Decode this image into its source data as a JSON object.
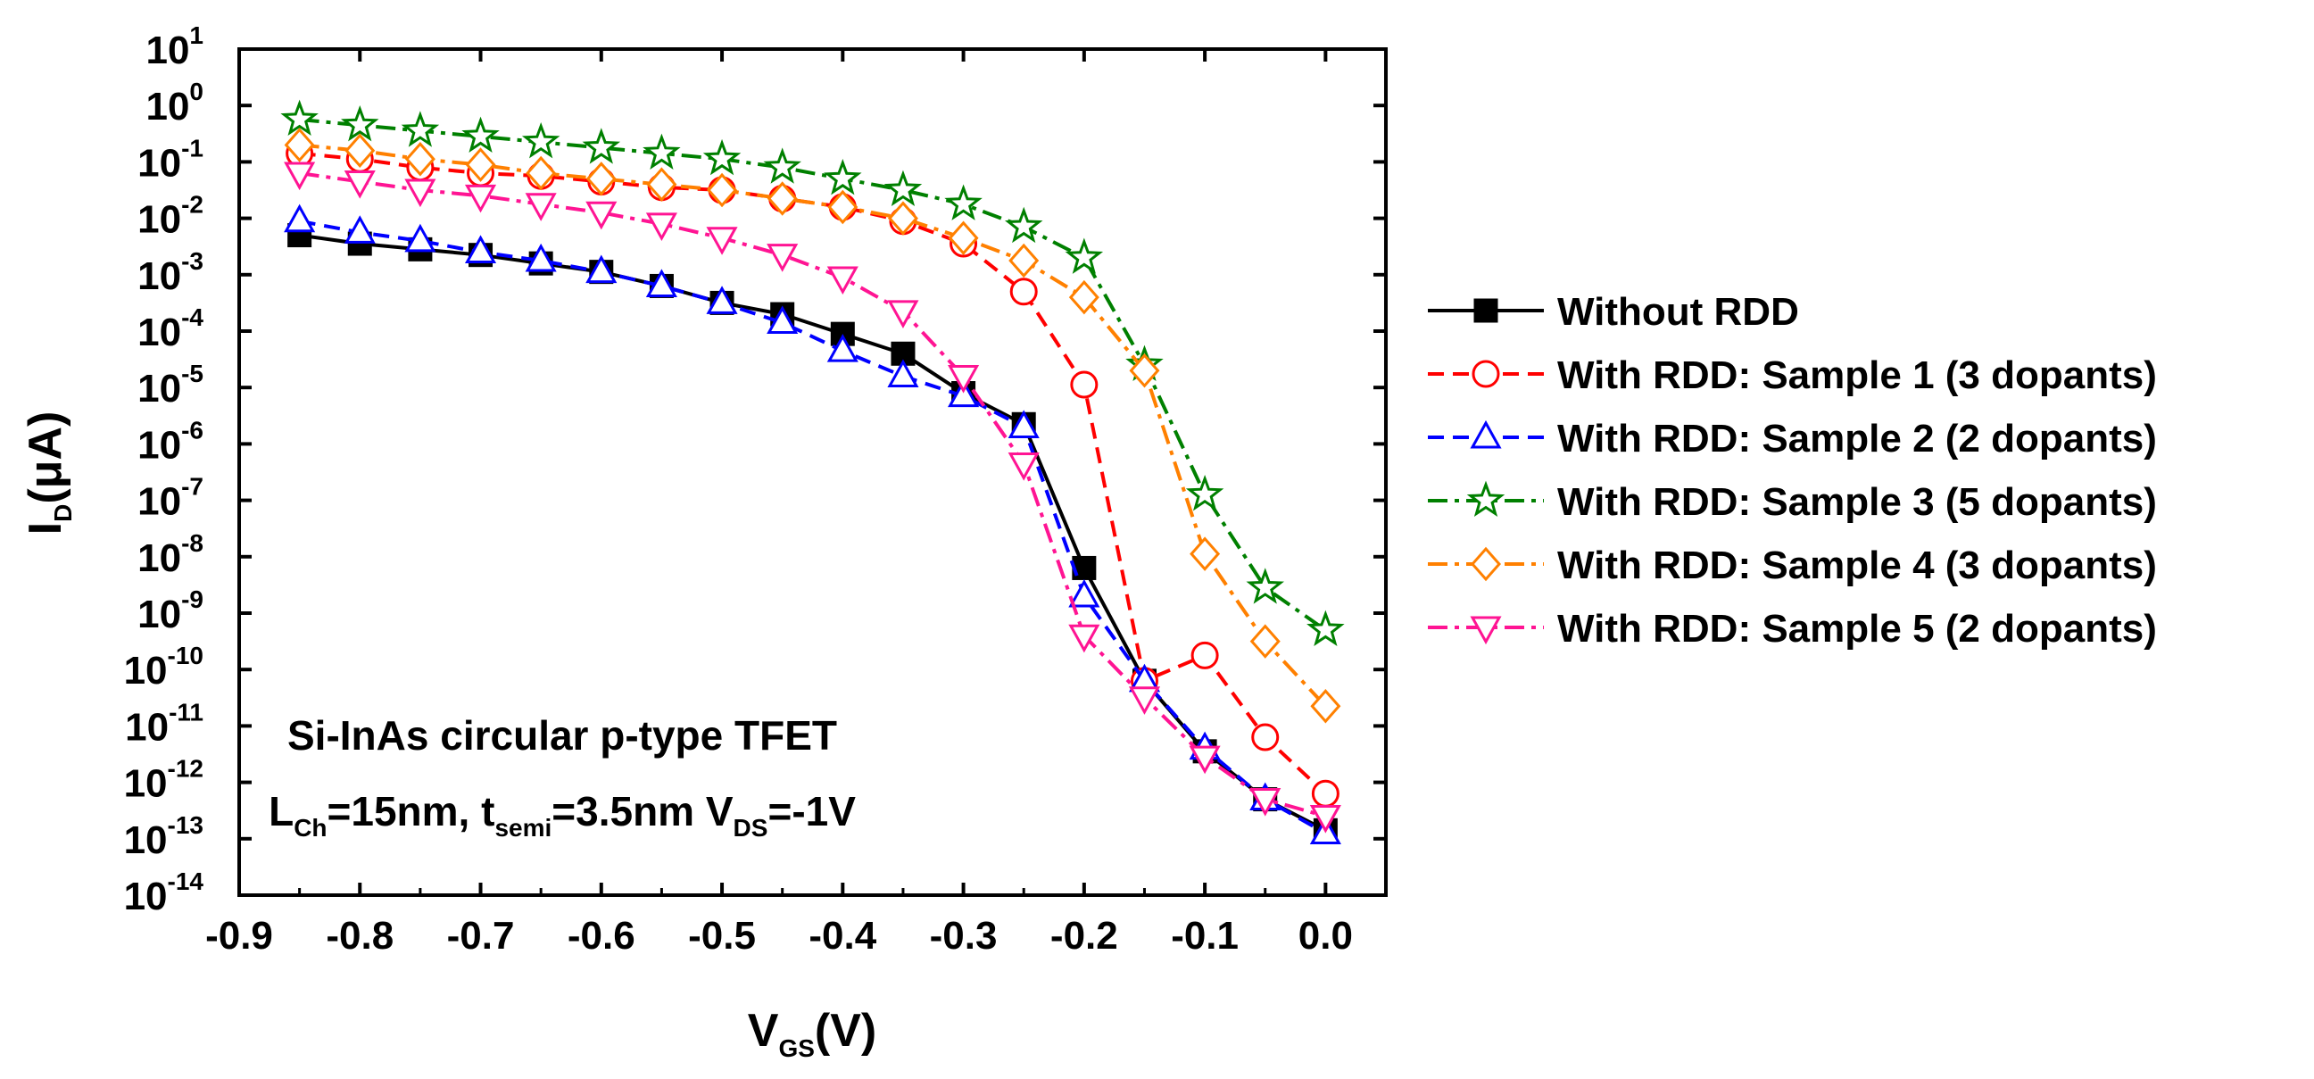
{
  "chart_data": {
    "type": "line",
    "yscale": "log",
    "xlim": [
      -0.9,
      0.05
    ],
    "ylim_exp": [
      -14,
      1
    ],
    "x_ticks": [
      "-0.9",
      "-0.8",
      "-0.7",
      "-0.6",
      "-0.5",
      "-0.4",
      "-0.3",
      "-0.2",
      "-0.1",
      "0.0"
    ],
    "y_tick_base": "10",
    "y_tick_exponents": [
      "-14",
      "-13",
      "-12",
      "-11",
      "-10",
      "-9",
      "-8",
      "-7",
      "-6",
      "-5",
      "-4",
      "-3",
      "-2",
      "-1",
      "0",
      "1"
    ],
    "xlabel": {
      "main": "V",
      "sub": "GS",
      "rest": "(V)"
    },
    "ylabel": {
      "main": "I",
      "sub": "D",
      "rest": "(μA)"
    },
    "annotation": {
      "line1": "Si-InAs circular p-type TFET",
      "line2": [
        {
          "t": "L"
        },
        {
          "t": "Ch",
          "sub": true
        },
        {
          "t": "=15nm, t"
        },
        {
          "t": "semi",
          "sub": true
        },
        {
          "t": "=3.5nm V"
        },
        {
          "t": "DS",
          "sub": true
        },
        {
          "t": "=-1V"
        }
      ]
    },
    "legend_position": "right",
    "x": [
      -0.85,
      -0.8,
      -0.75,
      -0.7,
      -0.65,
      -0.6,
      -0.55,
      -0.5,
      -0.45,
      -0.4,
      -0.35,
      -0.3,
      -0.25,
      -0.2,
      -0.15,
      -0.1,
      -0.05,
      0.0
    ],
    "series": [
      {
        "name": "Without RDD",
        "color": "#000000",
        "marker": "square",
        "filled": true,
        "dash": "solid",
        "log10_values": [
          -2.3,
          -2.45,
          -2.55,
          -2.65,
          -2.8,
          -2.95,
          -3.2,
          -3.5,
          -3.7,
          -4.05,
          -4.4,
          -5.1,
          -5.65,
          -8.2,
          -10.2,
          -11.45,
          -12.3,
          -12.85
        ]
      },
      {
        "name": "With RDD: Sample 1 (3 dopants)",
        "color": "#ff0000",
        "marker": "circle",
        "filled": false,
        "dash": "dash",
        "log10_values": [
          -0.85,
          -0.95,
          -1.1,
          -1.2,
          -1.25,
          -1.35,
          -1.45,
          -1.5,
          -1.65,
          -1.8,
          -2.05,
          -2.45,
          -3.3,
          -4.95,
          -10.2,
          -9.75,
          -11.2,
          -12.2
        ]
      },
      {
        "name": "With RDD: Sample 2 (2 dopants)",
        "color": "#0000ff",
        "marker": "triangle-up",
        "filled": false,
        "dash": "dash",
        "log10_values": [
          -2.05,
          -2.25,
          -2.4,
          -2.6,
          -2.75,
          -2.95,
          -3.2,
          -3.5,
          -3.85,
          -4.35,
          -4.8,
          -5.15,
          -5.7,
          -8.7,
          -10.2,
          -11.4,
          -12.3,
          -12.9
        ]
      },
      {
        "name": "With RDD: Sample 3 (5 dopants)",
        "color": "#008000",
        "marker": "star",
        "filled": false,
        "dash": "dashdot",
        "log10_values": [
          -0.25,
          -0.35,
          -0.45,
          -0.55,
          -0.65,
          -0.75,
          -0.85,
          -0.95,
          -1.1,
          -1.3,
          -1.5,
          -1.75,
          -2.15,
          -2.7,
          -4.6,
          -6.9,
          -8.55,
          -9.3
        ]
      },
      {
        "name": "With RDD: Sample 4 (3 dopants)",
        "color": "#ff8000",
        "marker": "diamond",
        "filled": false,
        "dash": "dashdot",
        "log10_values": [
          -0.7,
          -0.8,
          -0.95,
          -1.05,
          -1.2,
          -1.3,
          -1.4,
          -1.5,
          -1.65,
          -1.8,
          -2.0,
          -2.35,
          -2.75,
          -3.4,
          -4.7,
          -7.95,
          -9.5,
          -10.65
        ]
      },
      {
        "name": "With RDD: Sample 5 (2 dopants)",
        "color": "#ff1493",
        "marker": "triangle-down",
        "filled": false,
        "dash": "dashdot",
        "log10_values": [
          -1.2,
          -1.35,
          -1.5,
          -1.6,
          -1.75,
          -1.9,
          -2.1,
          -2.35,
          -2.65,
          -3.05,
          -3.65,
          -4.8,
          -6.35,
          -9.4,
          -10.5,
          -11.55,
          -12.3,
          -12.6
        ]
      }
    ]
  }
}
